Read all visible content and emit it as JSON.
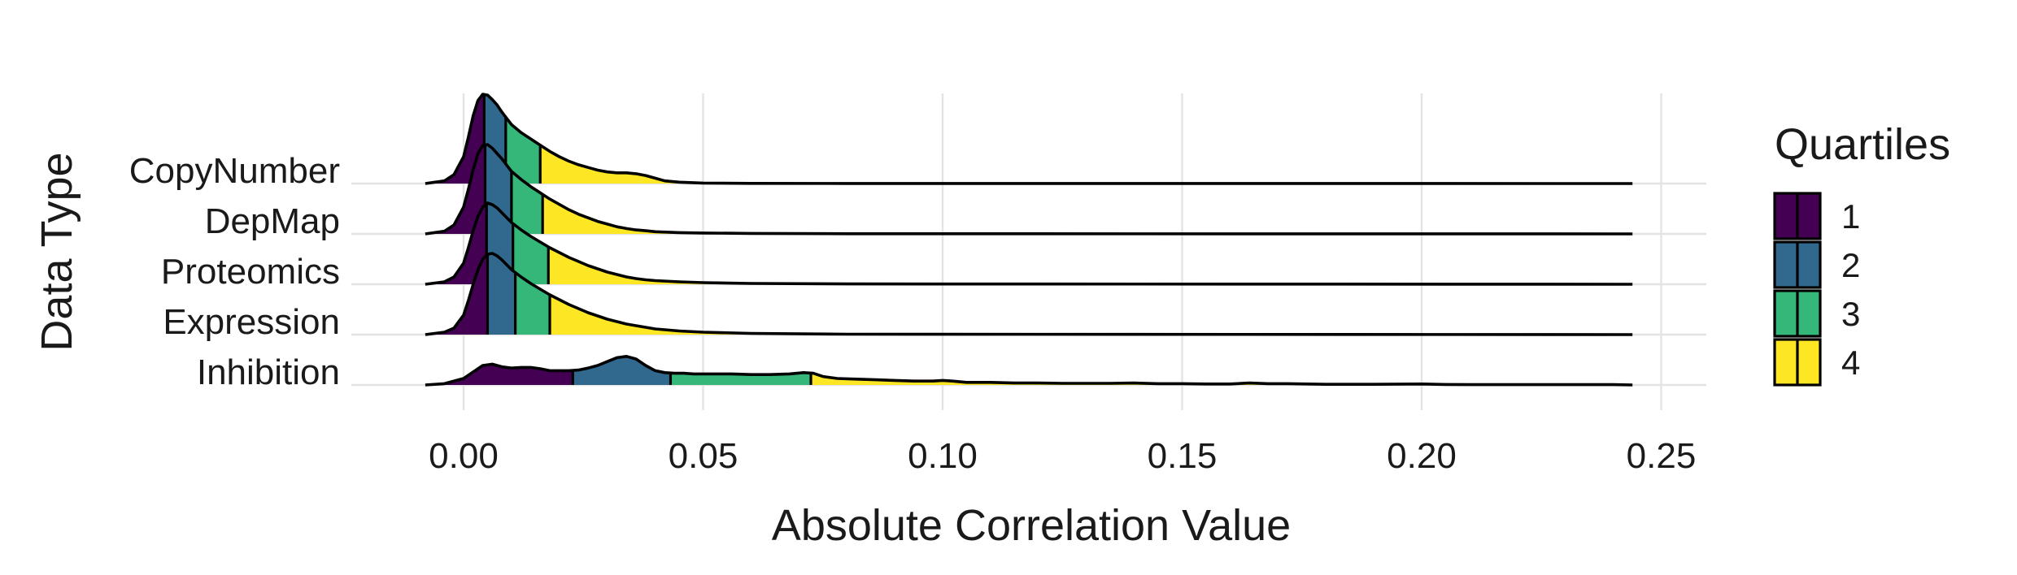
{
  "chart_data": {
    "type": "ridgeline",
    "xlabel": "Absolute Correlation Value",
    "ylabel": "Data Type",
    "xlim": [
      -0.008,
      0.25
    ],
    "x_ticks": [
      0.0,
      0.05,
      0.1,
      0.15,
      0.2,
      0.25
    ],
    "x_tick_labels": [
      "0.00",
      "0.05",
      "0.10",
      "0.15",
      "0.20",
      "0.25"
    ],
    "grid": true,
    "legend": {
      "title": "Quartiles",
      "position": "right",
      "entries": [
        {
          "label": "1",
          "color": "#440154"
        },
        {
          "label": "2",
          "color": "#31688E"
        },
        {
          "label": "3",
          "color": "#35B779"
        },
        {
          "label": "4",
          "color": "#FDE725"
        }
      ]
    },
    "series": [
      {
        "name": "CopyNumber",
        "quartile_breaks": [
          0.0043,
          0.0088,
          0.016
        ],
        "x": [
          -0.008,
          -0.004,
          -0.002,
          0.0,
          0.001,
          0.002,
          0.003,
          0.004,
          0.005,
          0.006,
          0.007,
          0.008,
          0.009,
          0.01,
          0.012,
          0.014,
          0.016,
          0.018,
          0.02,
          0.022,
          0.024,
          0.026,
          0.028,
          0.03,
          0.032,
          0.034,
          0.036,
          0.038,
          0.04,
          0.042,
          0.045,
          0.05,
          0.06,
          0.08,
          0.244
        ],
        "density": [
          0.0,
          0.03,
          0.1,
          0.3,
          0.52,
          0.76,
          0.93,
          1.0,
          0.99,
          0.94,
          0.88,
          0.8,
          0.73,
          0.66,
          0.57,
          0.5,
          0.43,
          0.36,
          0.3,
          0.25,
          0.21,
          0.18,
          0.15,
          0.13,
          0.12,
          0.12,
          0.11,
          0.09,
          0.06,
          0.03,
          0.015,
          0.005,
          0.002,
          0.001,
          0.0
        ]
      },
      {
        "name": "DepMap",
        "quartile_breaks": [
          0.0045,
          0.01,
          0.0165
        ],
        "x": [
          -0.008,
          -0.004,
          -0.002,
          0.0,
          0.001,
          0.002,
          0.003,
          0.004,
          0.005,
          0.006,
          0.007,
          0.008,
          0.009,
          0.01,
          0.012,
          0.014,
          0.016,
          0.018,
          0.02,
          0.022,
          0.024,
          0.026,
          0.028,
          0.03,
          0.032,
          0.034,
          0.036,
          0.038,
          0.04,
          0.045,
          0.05,
          0.06,
          0.08,
          0.244
        ],
        "density": [
          0.0,
          0.03,
          0.1,
          0.3,
          0.5,
          0.72,
          0.9,
          0.99,
          1.0,
          0.96,
          0.9,
          0.84,
          0.77,
          0.7,
          0.61,
          0.53,
          0.46,
          0.39,
          0.33,
          0.27,
          0.22,
          0.18,
          0.14,
          0.11,
          0.08,
          0.06,
          0.045,
          0.035,
          0.025,
          0.015,
          0.01,
          0.005,
          0.002,
          0.0
        ]
      },
      {
        "name": "Proteomics",
        "quartile_breaks": [
          0.0048,
          0.0103,
          0.0177
        ],
        "x": [
          -0.008,
          -0.004,
          -0.002,
          0.0,
          0.001,
          0.002,
          0.003,
          0.004,
          0.005,
          0.006,
          0.007,
          0.008,
          0.009,
          0.01,
          0.012,
          0.014,
          0.016,
          0.018,
          0.02,
          0.022,
          0.024,
          0.026,
          0.028,
          0.03,
          0.032,
          0.034,
          0.036,
          0.038,
          0.04,
          0.045,
          0.05,
          0.06,
          0.08,
          0.244
        ],
        "density": [
          0.0,
          0.03,
          0.09,
          0.26,
          0.45,
          0.66,
          0.84,
          0.95,
          1.0,
          0.98,
          0.94,
          0.88,
          0.82,
          0.76,
          0.67,
          0.59,
          0.52,
          0.45,
          0.39,
          0.33,
          0.28,
          0.23,
          0.19,
          0.15,
          0.12,
          0.09,
          0.07,
          0.055,
          0.045,
          0.03,
          0.02,
          0.01,
          0.004,
          0.0
        ]
      },
      {
        "name": "Expression",
        "quartile_breaks": [
          0.005,
          0.0108,
          0.018
        ],
        "x": [
          -0.008,
          -0.004,
          -0.002,
          0.0,
          0.001,
          0.002,
          0.003,
          0.004,
          0.005,
          0.006,
          0.007,
          0.008,
          0.009,
          0.01,
          0.012,
          0.014,
          0.016,
          0.018,
          0.02,
          0.022,
          0.024,
          0.026,
          0.028,
          0.03,
          0.032,
          0.034,
          0.036,
          0.038,
          0.04,
          0.045,
          0.05,
          0.06,
          0.08,
          0.244
        ],
        "density": [
          0.0,
          0.03,
          0.08,
          0.24,
          0.42,
          0.62,
          0.8,
          0.93,
          0.99,
          1.0,
          0.97,
          0.92,
          0.86,
          0.8,
          0.71,
          0.63,
          0.56,
          0.49,
          0.43,
          0.37,
          0.32,
          0.27,
          0.23,
          0.19,
          0.16,
          0.13,
          0.11,
          0.09,
          0.07,
          0.045,
          0.03,
          0.015,
          0.005,
          0.0
        ]
      },
      {
        "name": "Inhibition",
        "quartile_breaks": [
          0.0228,
          0.0432,
          0.0725
        ],
        "x": [
          -0.008,
          -0.004,
          0.0,
          0.002,
          0.004,
          0.006,
          0.008,
          0.01,
          0.012,
          0.014,
          0.016,
          0.018,
          0.02,
          0.022,
          0.024,
          0.026,
          0.028,
          0.03,
          0.032,
          0.034,
          0.036,
          0.038,
          0.04,
          0.042,
          0.044,
          0.046,
          0.048,
          0.05,
          0.052,
          0.056,
          0.06,
          0.064,
          0.068,
          0.071,
          0.073,
          0.075,
          0.078,
          0.082,
          0.086,
          0.09,
          0.094,
          0.098,
          0.1,
          0.102,
          0.105,
          0.11,
          0.115,
          0.12,
          0.125,
          0.13,
          0.135,
          0.14,
          0.145,
          0.15,
          0.155,
          0.16,
          0.164,
          0.168,
          0.172,
          0.18,
          0.19,
          0.2,
          0.205,
          0.21,
          0.22,
          0.23,
          0.24,
          0.244
        ],
        "density": [
          0.0,
          0.02,
          0.1,
          0.2,
          0.3,
          0.32,
          0.28,
          0.26,
          0.27,
          0.27,
          0.25,
          0.22,
          0.22,
          0.22,
          0.23,
          0.26,
          0.3,
          0.36,
          0.42,
          0.44,
          0.4,
          0.3,
          0.22,
          0.19,
          0.18,
          0.18,
          0.17,
          0.17,
          0.17,
          0.17,
          0.16,
          0.16,
          0.17,
          0.19,
          0.18,
          0.13,
          0.1,
          0.09,
          0.08,
          0.07,
          0.06,
          0.06,
          0.07,
          0.06,
          0.04,
          0.04,
          0.03,
          0.03,
          0.025,
          0.025,
          0.025,
          0.03,
          0.02,
          0.02,
          0.015,
          0.015,
          0.03,
          0.02,
          0.02,
          0.01,
          0.01,
          0.015,
          0.008,
          0.005,
          0.005,
          0.005,
          0.005,
          0.0
        ]
      }
    ]
  }
}
